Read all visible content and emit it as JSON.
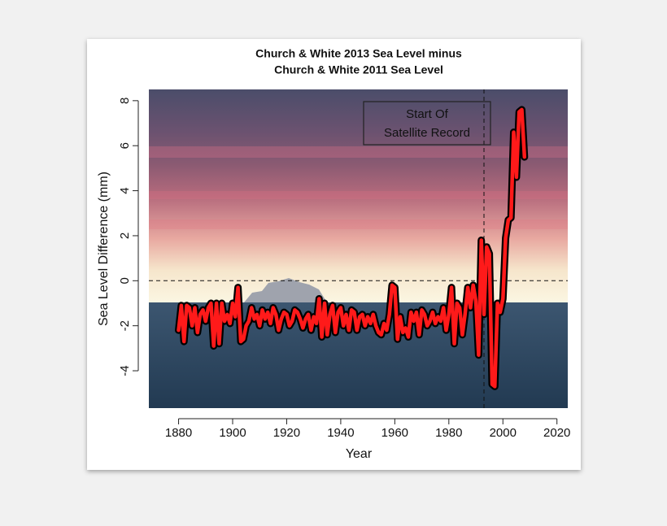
{
  "chart_data": {
    "type": "line",
    "title": [
      "Church & White 2013 Sea Level minus",
      "Church & White 2011 Sea Level"
    ],
    "x_label": "Year",
    "y_label": "Sea Level Difference (mm)",
    "annotation": [
      "Start Of",
      "Satellite Record"
    ],
    "vline": 1993,
    "hline": 0,
    "xlim": [
      1869,
      2024
    ],
    "ylim": [
      -5.66,
      8.5
    ],
    "xticks": [
      1880,
      1900,
      1920,
      1940,
      1960,
      1980,
      2000,
      2020
    ],
    "yticks": [
      -4,
      -2,
      0,
      2,
      4,
      6,
      8
    ],
    "x": [
      1880,
      1881,
      1882,
      1883,
      1884,
      1885,
      1886,
      1887,
      1888,
      1889,
      1890,
      1891,
      1892,
      1893,
      1894,
      1895,
      1896,
      1897,
      1898,
      1899,
      1900,
      1901,
      1902,
      1903,
      1904,
      1905,
      1906,
      1907,
      1908,
      1909,
      1910,
      1911,
      1912,
      1913,
      1914,
      1915,
      1916,
      1917,
      1918,
      1919,
      1920,
      1921,
      1922,
      1923,
      1924,
      1925,
      1926,
      1927,
      1928,
      1929,
      1930,
      1931,
      1932,
      1933,
      1934,
      1935,
      1936,
      1937,
      1938,
      1939,
      1940,
      1941,
      1942,
      1943,
      1944,
      1945,
      1946,
      1947,
      1948,
      1949,
      1950,
      1951,
      1952,
      1953,
      1954,
      1955,
      1956,
      1957,
      1958,
      1959,
      1960,
      1961,
      1962,
      1963,
      1964,
      1965,
      1966,
      1967,
      1968,
      1969,
      1970,
      1971,
      1972,
      1973,
      1974,
      1975,
      1976,
      1977,
      1978,
      1979,
      1980,
      1981,
      1982,
      1983,
      1984,
      1985,
      1986,
      1987,
      1988,
      1989,
      1990,
      1991,
      1992,
      1993,
      1994,
      1995,
      1996,
      1997,
      1998,
      1999,
      2000,
      2001,
      2002,
      2003,
      2004,
      2005,
      2006,
      2007,
      2008
    ],
    "series": [
      {
        "color": "#ff1a1a",
        "outline": "#000000",
        "values": [
          -2.2,
          -1.1,
          -2.7,
          -1.1,
          -1.2,
          -2.0,
          -1.2,
          -2.3,
          -1.5,
          -1.3,
          -1.8,
          -1.2,
          -1.0,
          -2.9,
          -1.0,
          -2.8,
          -1.0,
          -1.8,
          -1.5,
          -1.9,
          -1.0,
          -1.6,
          -0.3,
          -2.7,
          -2.6,
          -2.0,
          -1.8,
          -1.2,
          -1.7,
          -1.5,
          -2.0,
          -1.3,
          -1.7,
          -1.4,
          -1.9,
          -1.2,
          -1.5,
          -2.2,
          -1.7,
          -1.4,
          -1.5,
          -2.0,
          -1.8,
          -1.3,
          -1.4,
          -1.7,
          -2.1,
          -1.7,
          -1.5,
          -2.2,
          -1.6,
          -1.9,
          -0.8,
          -2.5,
          -1.0,
          -2.4,
          -1.5,
          -1.1,
          -2.3,
          -1.4,
          -1.2,
          -2.0,
          -1.5,
          -2.2,
          -1.3,
          -1.4,
          -2.2,
          -1.6,
          -1.5,
          -2.0,
          -1.6,
          -1.9,
          -1.5,
          -2.0,
          -2.3,
          -2.4,
          -1.9,
          -2.2,
          -1.5,
          -0.2,
          -0.3,
          -2.6,
          -1.6,
          -2.3,
          -2.1,
          -2.5,
          -1.4,
          -1.8,
          -1.4,
          -2.4,
          -1.3,
          -1.5,
          -2.0,
          -1.8,
          -1.4,
          -1.9,
          -1.6,
          -1.8,
          -1.2,
          -2.2,
          -1.5,
          -0.3,
          -2.8,
          -1.0,
          -1.2,
          -2.4,
          -1.5,
          -0.3,
          -1.2,
          -0.2,
          -0.9,
          -3.3,
          1.8,
          -1.5,
          1.5,
          1.2,
          -4.6,
          -4.7,
          -1.0,
          -1.4,
          -0.8,
          1.9,
          2.7,
          2.8,
          6.6,
          4.6,
          7.5,
          7.6,
          5.5
        ]
      }
    ]
  }
}
